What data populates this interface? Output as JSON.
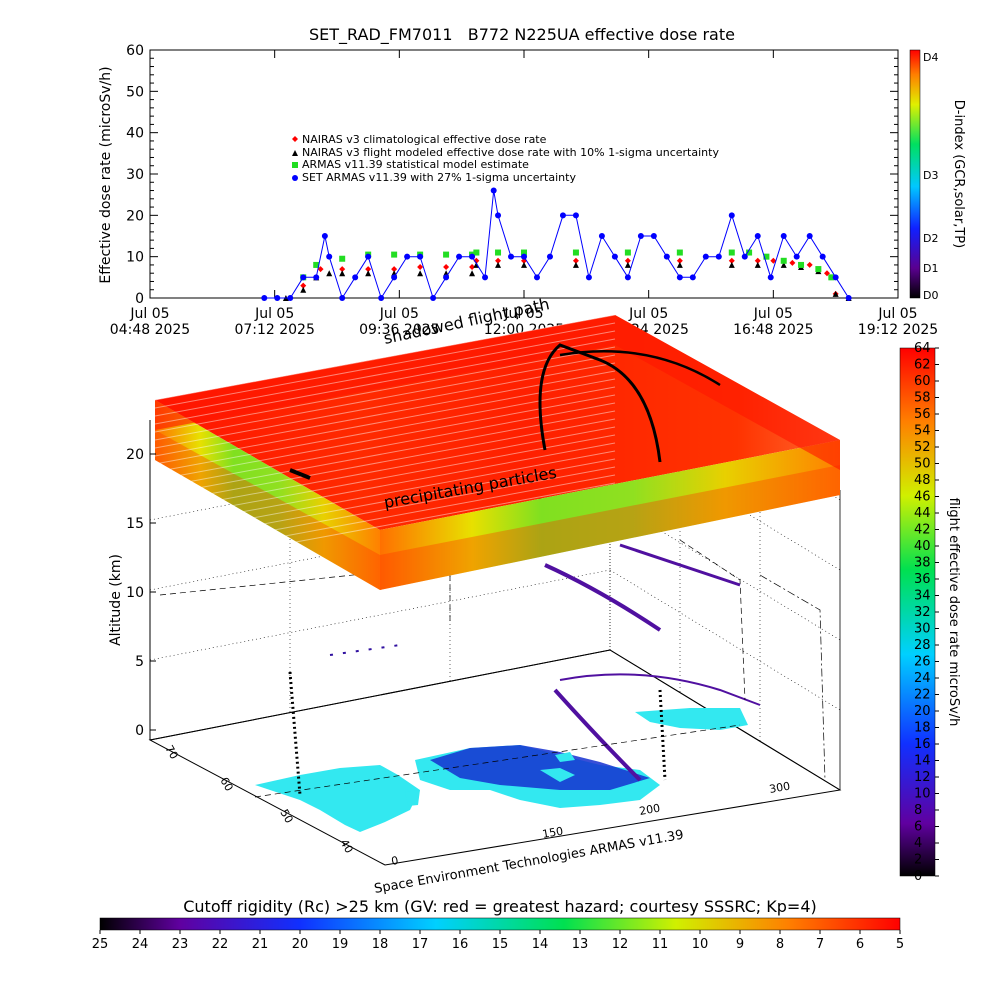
{
  "chart_data": [
    {
      "type": "scatter",
      "title": "SET_RAD_FM7011   B772 N225UA effective dose rate",
      "ylabel": "Effective dose rate (microSv/h)",
      "ylim": [
        0,
        60
      ],
      "yticks": [
        "0",
        "10",
        "20",
        "30",
        "40",
        "50",
        "60"
      ],
      "xlim": [
        "2025-07-05 04:48",
        "2025-07-05 19:12"
      ],
      "xticks": [
        {
          "line1": "Jul 05",
          "line2": "04:48 2025"
        },
        {
          "line1": "Jul 05",
          "line2": "07:12 2025"
        },
        {
          "line1": "Jul 05",
          "line2": "09:36 2025"
        },
        {
          "line1": "Jul 05",
          "line2": "12:00 2025"
        },
        {
          "line1": "Jul 05",
          "line2": "14:24 2025"
        },
        {
          "line1": "Jul 05",
          "line2": "16:48 2025"
        },
        {
          "line1": "Jul 05",
          "line2": "19:12 2025"
        }
      ],
      "legend_position": "upper-left",
      "series": [
        {
          "name": "NAIRAS v3 climatological effective dose rate",
          "color": "#ff0000",
          "marker": "diamond",
          "x": [
            "07:45",
            "08:05",
            "08:30",
            "09:00",
            "09:30",
            "10:00",
            "10:30",
            "11:00",
            "11:05",
            "11:30",
            "12:00",
            "13:00",
            "14:00",
            "15:00",
            "16:00",
            "16:30",
            "16:48",
            "17:10",
            "17:30",
            "17:50",
            "18:00"
          ],
          "y": [
            3,
            7,
            7,
            7,
            7,
            7.5,
            7.5,
            7.5,
            9,
            9,
            9,
            9,
            9,
            9,
            9,
            9,
            9,
            8.5,
            8,
            6,
            1
          ]
        },
        {
          "name": "NAIRAS v3 flight modeled effective dose rate with 10% 1-sigma uncertainty",
          "color": "#000000",
          "marker": "triangle",
          "x": [
            "07:25",
            "07:45",
            "08:00",
            "08:15",
            "08:30",
            "09:00",
            "09:30",
            "10:00",
            "10:30",
            "11:00",
            "11:05",
            "11:30",
            "12:00",
            "13:00",
            "14:00",
            "15:00",
            "16:00",
            "16:30",
            "17:00",
            "17:20",
            "17:40",
            "18:00",
            "18:15"
          ],
          "y": [
            0,
            2,
            5,
            6,
            6,
            6,
            6,
            6,
            6,
            6,
            8,
            8,
            8,
            8,
            8,
            8,
            8,
            8,
            8,
            7.5,
            6.5,
            1,
            0
          ]
        },
        {
          "name": "ARMAS v11.39 statistical model estimate",
          "color": "#22dd22",
          "marker": "square",
          "x": [
            "07:45",
            "08:00",
            "08:30",
            "09:00",
            "09:30",
            "10:00",
            "10:30",
            "11:00",
            "11:05",
            "11:30",
            "12:00",
            "13:00",
            "14:00",
            "15:00",
            "16:00",
            "16:20",
            "16:40",
            "17:00",
            "17:20",
            "17:40",
            "17:55"
          ],
          "y": [
            5,
            8,
            9.5,
            10.5,
            10.5,
            10.5,
            10.5,
            10.5,
            11,
            11,
            11,
            11,
            11,
            11,
            11,
            11,
            10,
            9,
            8,
            7,
            5
          ]
        },
        {
          "name": "SET ARMAS v11.39 with 27% 1-sigma uncertainty",
          "color": "#0000ff",
          "marker": "circle",
          "x": [
            "07:00",
            "07:15",
            "07:30",
            "07:45",
            "08:00",
            "08:10",
            "08:15",
            "08:30",
            "08:45",
            "09:00",
            "09:15",
            "09:30",
            "09:45",
            "10:00",
            "10:15",
            "10:30",
            "10:45",
            "11:00",
            "11:15",
            "11:25",
            "11:30",
            "11:45",
            "12:00",
            "12:15",
            "12:30",
            "12:45",
            "13:00",
            "13:15",
            "13:30",
            "13:45",
            "14:00",
            "14:15",
            "14:30",
            "14:45",
            "15:00",
            "15:15",
            "15:30",
            "15:45",
            "16:00",
            "16:15",
            "16:30",
            "16:45",
            "17:00",
            "17:15",
            "17:30",
            "17:45",
            "18:00",
            "18:15"
          ],
          "y": [
            0,
            0,
            0,
            5,
            5,
            15,
            10,
            0,
            5,
            10,
            0,
            5,
            10,
            10,
            0,
            5,
            10,
            10,
            5,
            26,
            20,
            10,
            10,
            5,
            10,
            20,
            20,
            5,
            15,
            10,
            5,
            15,
            15,
            10,
            5,
            5,
            10,
            10,
            20,
            10,
            15,
            5,
            15,
            10,
            15,
            10,
            5,
            0
          ]
        }
      ],
      "colorbar": {
        "label": "D-index (GCR,solar,TP)",
        "ticks": [
          "D0",
          "D1",
          "D2",
          "D3",
          "D4"
        ]
      }
    },
    {
      "type": "heatmap",
      "subtype": "3d-surface",
      "zlabel": "Altitude (km)",
      "zticks": [
        "0",
        "5",
        "10",
        "15",
        "20"
      ],
      "lat_ticks": [
        "70",
        "60",
        "50",
        "40"
      ],
      "lon_ticks": [
        "0",
        "150",
        "200",
        "300"
      ],
      "annotations": [
        "precipitating particles",
        "shadowed flight path"
      ],
      "colorbar": {
        "label": "flight effective dose rate microSv/h",
        "ticks": [
          "0",
          "2",
          "4",
          "6",
          "8",
          "10",
          "12",
          "14",
          "16",
          "18",
          "20",
          "22",
          "24",
          "26",
          "28",
          "30",
          "32",
          "34",
          "36",
          "38",
          "40",
          "42",
          "44",
          "46",
          "48",
          "50",
          "52",
          "54",
          "56",
          "58",
          "60",
          "62",
          "64"
        ]
      },
      "credit": "Space Environment Technologies ARMAS v11.39"
    },
    {
      "type": "heatmap",
      "subtype": "colorbar",
      "title": "Cutoff rigidity (Rc) >25 km (GV: red = greatest hazard; courtesy SSSRC; Kp=4)",
      "ticks": [
        "25",
        "24",
        "23",
        "22",
        "21",
        "20",
        "19",
        "18",
        "17",
        "16",
        "15",
        "14",
        "13",
        "12",
        "11",
        "10",
        "9",
        "8",
        "7",
        "6",
        "5"
      ]
    }
  ]
}
